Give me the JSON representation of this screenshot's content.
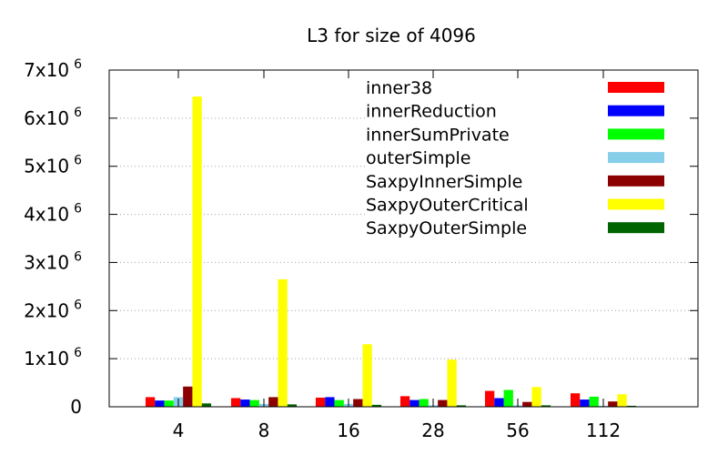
{
  "chart_data": {
    "type": "bar",
    "title": "L3 for size of 4096",
    "xlabel": "",
    "ylabel": "",
    "categories": [
      "4",
      "8",
      "16",
      "28",
      "56",
      "112"
    ],
    "ylim": [
      0,
      7000000
    ],
    "yticks": [
      {
        "value": 0,
        "mantissa": "0",
        "exponent": ""
      },
      {
        "value": 1000000,
        "mantissa": "1x10",
        "exponent": "6"
      },
      {
        "value": 2000000,
        "mantissa": "2x10",
        "exponent": "6"
      },
      {
        "value": 3000000,
        "mantissa": "3x10",
        "exponent": "6"
      },
      {
        "value": 4000000,
        "mantissa": "4x10",
        "exponent": "6"
      },
      {
        "value": 5000000,
        "mantissa": "5x10",
        "exponent": "6"
      },
      {
        "value": 6000000,
        "mantissa": "6x10",
        "exponent": "6"
      },
      {
        "value": 7000000,
        "mantissa": "7x10",
        "exponent": "6"
      }
    ],
    "grid": true,
    "legend_position": "top-right",
    "series": [
      {
        "name": "inner38",
        "color": "#ff0000",
        "values": [
          200000,
          180000,
          190000,
          220000,
          330000,
          280000
        ]
      },
      {
        "name": "innerReduction",
        "color": "#0000ff",
        "values": [
          130000,
          150000,
          200000,
          140000,
          180000,
          150000
        ]
      },
      {
        "name": "innerSumPrivate",
        "color": "#00ff00",
        "values": [
          130000,
          140000,
          140000,
          160000,
          350000,
          210000
        ]
      },
      {
        "name": "outerSimple",
        "color": "#87ceeb",
        "values": [
          200000,
          60000,
          60000,
          30000,
          30000,
          20000
        ]
      },
      {
        "name": "SaxpyInnerSimple",
        "color": "#8b0000",
        "values": [
          420000,
          200000,
          160000,
          140000,
          100000,
          110000
        ]
      },
      {
        "name": "SaxpyOuterCritical",
        "color": "#ffff00",
        "values": [
          6450000,
          2650000,
          1300000,
          980000,
          410000,
          260000
        ]
      },
      {
        "name": "SaxpyOuterSimple",
        "color": "#006400",
        "values": [
          70000,
          50000,
          40000,
          30000,
          30000,
          20000
        ]
      }
    ]
  }
}
